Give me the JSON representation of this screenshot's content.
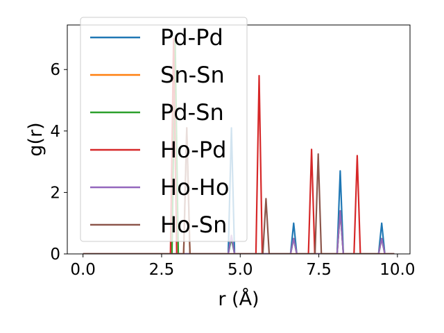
{
  "chart_data": {
    "type": "line",
    "title": "",
    "xlabel": "r (Å)",
    "ylabel": "g(r)",
    "xlim": [
      -0.5,
      10.4
    ],
    "ylim": [
      0,
      7.45
    ],
    "xticks": [
      0.0,
      2.5,
      5.0,
      7.5,
      10.0
    ],
    "xtick_labels": [
      "0.0",
      "2.5",
      "5.0",
      "7.5",
      "10.0"
    ],
    "yticks": [
      0,
      2,
      4,
      6
    ],
    "ytick_labels": [
      "0",
      "2",
      "4",
      "6"
    ],
    "grid": false,
    "legend_position": "top-left",
    "series": [
      {
        "name": "Pd-Pd",
        "color": "#1f77b4",
        "baseline": [
          0.0,
          9.9
        ],
        "peaks": [
          [
            4.72,
            4.1
          ],
          [
            6.7,
            1.0
          ],
          [
            8.18,
            2.7
          ],
          [
            9.5,
            1.0
          ]
        ]
      },
      {
        "name": "Sn-Sn",
        "color": "#ff7f0e",
        "baseline": [
          0.0,
          9.9
        ],
        "peaks": [
          [
            3.3,
            4.1
          ],
          [
            4.72,
            0.6
          ],
          [
            6.7,
            0.5
          ],
          [
            8.18,
            1.4
          ],
          [
            9.5,
            0.5
          ]
        ]
      },
      {
        "name": "Pd-Sn",
        "color": "#2ca02c",
        "baseline": [
          0.0,
          9.9
        ],
        "peaks": [
          [
            2.93,
            7.0
          ],
          [
            4.72,
            0.5
          ],
          [
            6.7,
            0.5
          ],
          [
            8.18,
            1.4
          ],
          [
            9.5,
            0.5
          ]
        ]
      },
      {
        "name": "Ho-Pd",
        "color": "#d62728",
        "baseline": [
          0.0,
          9.9
        ],
        "peaks": [
          [
            2.88,
            7.0
          ],
          [
            5.6,
            5.8
          ],
          [
            7.27,
            3.4
          ],
          [
            8.72,
            3.2
          ]
        ]
      },
      {
        "name": "Ho-Ho",
        "color": "#9467bd",
        "baseline": [
          0.0,
          9.9
        ],
        "peaks": [
          [
            4.72,
            0.6
          ],
          [
            6.7,
            0.5
          ],
          [
            8.18,
            1.4
          ],
          [
            9.5,
            0.5
          ]
        ]
      },
      {
        "name": "Ho-Sn",
        "color": "#8c564b",
        "baseline": [
          0.0,
          9.9
        ],
        "peaks": [
          [
            3.3,
            4.1
          ],
          [
            5.82,
            1.8
          ],
          [
            7.48,
            3.25
          ]
        ]
      }
    ]
  }
}
